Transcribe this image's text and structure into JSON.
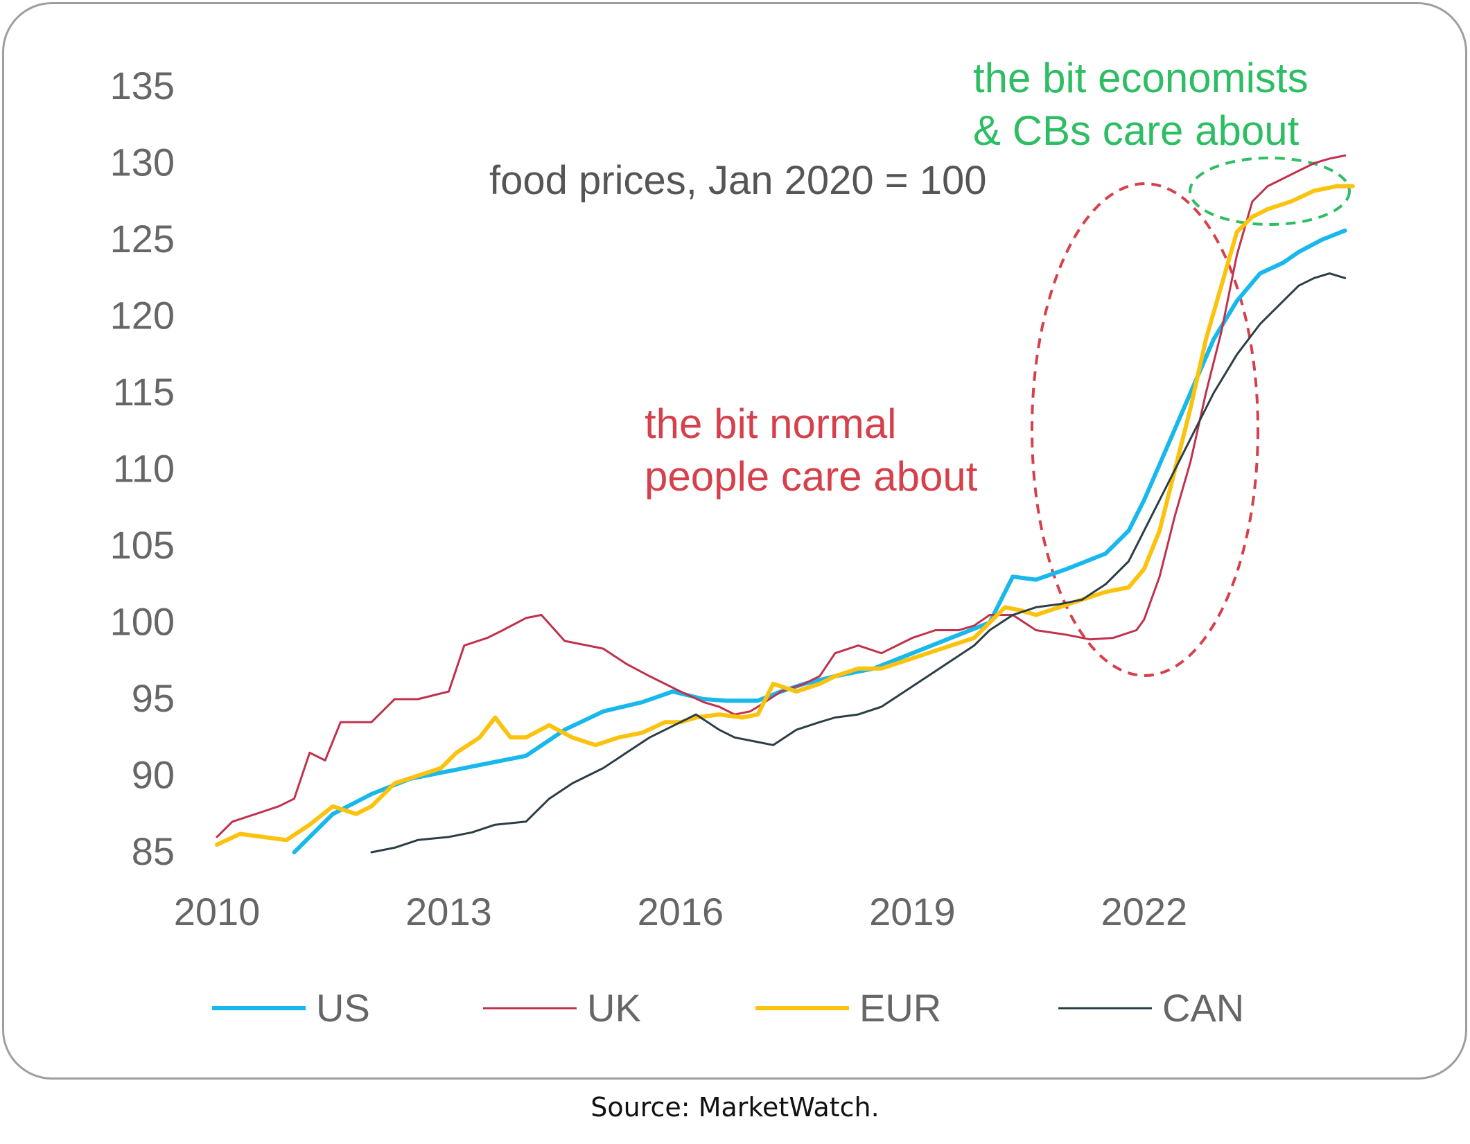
{
  "source_note": "Source: MarketWatch.",
  "chart_data": {
    "type": "line",
    "title": "food prices, Jan 2020 = 100",
    "xlabel": "",
    "ylabel": "",
    "xlim": [
      2010,
      2024.8
    ],
    "ylim": [
      85,
      135
    ],
    "x_ticks": [
      2010,
      2013,
      2016,
      2019,
      2022
    ],
    "y_ticks": [
      85,
      90,
      95,
      100,
      105,
      110,
      115,
      120,
      125,
      130,
      135
    ],
    "grid": false,
    "legend_position": "bottom",
    "annotations": [
      {
        "key": "econ",
        "lines": [
          "the bit economists",
          "& CBs care about"
        ],
        "color": "#2dbd63"
      },
      {
        "key": "normal",
        "lines": [
          "the bit normal",
          "people care about"
        ],
        "color": "#d6404b"
      }
    ],
    "series": [
      {
        "name": "US",
        "color": "#19b8ec",
        "width": 6,
        "points": [
          [
            2011.0,
            85
          ],
          [
            2011.5,
            87.5
          ],
          [
            2012.0,
            88.8
          ],
          [
            2012.5,
            89.8
          ],
          [
            2013.0,
            90.3
          ],
          [
            2013.5,
            90.8
          ],
          [
            2014.0,
            91.3
          ],
          [
            2014.5,
            93.0
          ],
          [
            2015.0,
            94.2
          ],
          [
            2015.5,
            94.8
          ],
          [
            2015.9,
            95.5
          ],
          [
            2016.3,
            95.0
          ],
          [
            2016.6,
            94.9
          ],
          [
            2017.0,
            94.9
          ],
          [
            2017.3,
            95.5
          ],
          [
            2017.6,
            96.0
          ],
          [
            2018.0,
            96.5
          ],
          [
            2018.5,
            97.0
          ],
          [
            2019.0,
            98.0
          ],
          [
            2019.5,
            99.0
          ],
          [
            2020.0,
            100.0
          ],
          [
            2020.3,
            103.0
          ],
          [
            2020.6,
            102.8
          ],
          [
            2021.0,
            103.5
          ],
          [
            2021.5,
            104.5
          ],
          [
            2021.8,
            106.0
          ],
          [
            2022.0,
            108.0
          ],
          [
            2022.3,
            111.5
          ],
          [
            2022.6,
            115.0
          ],
          [
            2022.9,
            118.5
          ],
          [
            2023.2,
            121.0
          ],
          [
            2023.5,
            122.8
          ],
          [
            2023.8,
            123.5
          ],
          [
            2024.0,
            124.2
          ],
          [
            2024.3,
            125.0
          ],
          [
            2024.6,
            125.6
          ]
        ]
      },
      {
        "name": "UK",
        "color": "#c0314d",
        "width": 3,
        "points": [
          [
            2010.0,
            86.0
          ],
          [
            2010.2,
            87.0
          ],
          [
            2010.5,
            87.5
          ],
          [
            2010.8,
            88.0
          ],
          [
            2011.0,
            88.5
          ],
          [
            2011.2,
            91.5
          ],
          [
            2011.4,
            91.0
          ],
          [
            2011.6,
            93.5
          ],
          [
            2012.0,
            93.5
          ],
          [
            2012.3,
            95.0
          ],
          [
            2012.6,
            95.0
          ],
          [
            2013.0,
            95.5
          ],
          [
            2013.2,
            98.5
          ],
          [
            2013.5,
            99.0
          ],
          [
            2013.7,
            99.5
          ],
          [
            2014.0,
            100.3
          ],
          [
            2014.2,
            100.5
          ],
          [
            2014.5,
            98.8
          ],
          [
            2014.8,
            98.5
          ],
          [
            2015.0,
            98.3
          ],
          [
            2015.3,
            97.3
          ],
          [
            2015.6,
            96.5
          ],
          [
            2016.0,
            95.5
          ],
          [
            2016.3,
            94.8
          ],
          [
            2016.5,
            94.5
          ],
          [
            2016.7,
            94.0
          ],
          [
            2016.9,
            94.2
          ],
          [
            2017.0,
            94.5
          ],
          [
            2017.3,
            95.5
          ],
          [
            2017.6,
            96.0
          ],
          [
            2017.8,
            96.5
          ],
          [
            2018.0,
            98.0
          ],
          [
            2018.3,
            98.5
          ],
          [
            2018.6,
            98.0
          ],
          [
            2018.8,
            98.5
          ],
          [
            2019.0,
            99.0
          ],
          [
            2019.3,
            99.5
          ],
          [
            2019.6,
            99.5
          ],
          [
            2019.8,
            99.8
          ],
          [
            2020.0,
            100.5
          ],
          [
            2020.3,
            100.5
          ],
          [
            2020.6,
            99.5
          ],
          [
            2021.0,
            99.2
          ],
          [
            2021.3,
            98.9
          ],
          [
            2021.6,
            99.0
          ],
          [
            2021.9,
            99.5
          ],
          [
            2022.0,
            100.2
          ],
          [
            2022.2,
            103.0
          ],
          [
            2022.4,
            107.0
          ],
          [
            2022.6,
            110.5
          ],
          [
            2022.8,
            115.0
          ],
          [
            2023.0,
            119.0
          ],
          [
            2023.2,
            124.0
          ],
          [
            2023.4,
            127.5
          ],
          [
            2023.6,
            128.5
          ],
          [
            2023.8,
            129.0
          ],
          [
            2024.0,
            129.5
          ],
          [
            2024.2,
            130.0
          ],
          [
            2024.4,
            130.3
          ],
          [
            2024.6,
            130.5
          ]
        ]
      },
      {
        "name": "EUR",
        "color": "#fbc20e",
        "width": 6,
        "points": [
          [
            2010.0,
            85.5
          ],
          [
            2010.3,
            86.2
          ],
          [
            2010.6,
            86.0
          ],
          [
            2010.9,
            85.8
          ],
          [
            2011.2,
            86.8
          ],
          [
            2011.5,
            88.0
          ],
          [
            2011.8,
            87.5
          ],
          [
            2012.0,
            88.0
          ],
          [
            2012.3,
            89.5
          ],
          [
            2012.6,
            90.0
          ],
          [
            2012.9,
            90.5
          ],
          [
            2013.1,
            91.5
          ],
          [
            2013.4,
            92.5
          ],
          [
            2013.6,
            93.8
          ],
          [
            2013.8,
            92.5
          ],
          [
            2014.0,
            92.5
          ],
          [
            2014.3,
            93.3
          ],
          [
            2014.6,
            92.5
          ],
          [
            2014.9,
            92.0
          ],
          [
            2015.2,
            92.5
          ],
          [
            2015.5,
            92.8
          ],
          [
            2015.8,
            93.5
          ],
          [
            2016.0,
            93.5
          ],
          [
            2016.2,
            93.8
          ],
          [
            2016.5,
            94.0
          ],
          [
            2016.8,
            93.8
          ],
          [
            2017.0,
            94.0
          ],
          [
            2017.2,
            96.0
          ],
          [
            2017.5,
            95.5
          ],
          [
            2017.8,
            96.0
          ],
          [
            2018.0,
            96.5
          ],
          [
            2018.3,
            97.0
          ],
          [
            2018.6,
            97.0
          ],
          [
            2018.9,
            97.5
          ],
          [
            2019.2,
            98.0
          ],
          [
            2019.5,
            98.5
          ],
          [
            2019.8,
            99.0
          ],
          [
            2020.0,
            100.0
          ],
          [
            2020.2,
            101.0
          ],
          [
            2020.4,
            100.8
          ],
          [
            2020.6,
            100.5
          ],
          [
            2020.9,
            101.0
          ],
          [
            2021.2,
            101.5
          ],
          [
            2021.5,
            102.0
          ],
          [
            2021.8,
            102.3
          ],
          [
            2022.0,
            103.5
          ],
          [
            2022.2,
            106.0
          ],
          [
            2022.4,
            110.0
          ],
          [
            2022.6,
            114.0
          ],
          [
            2022.8,
            118.5
          ],
          [
            2023.0,
            122.0
          ],
          [
            2023.2,
            125.5
          ],
          [
            2023.4,
            126.5
          ],
          [
            2023.6,
            127.0
          ],
          [
            2023.9,
            127.5
          ],
          [
            2024.2,
            128.2
          ],
          [
            2024.5,
            128.5
          ],
          [
            2024.7,
            128.5
          ]
        ]
      },
      {
        "name": "CAN",
        "color": "#2b3e47",
        "width": 3,
        "points": [
          [
            2012.0,
            85.0
          ],
          [
            2012.3,
            85.3
          ],
          [
            2012.6,
            85.8
          ],
          [
            2013.0,
            86.0
          ],
          [
            2013.3,
            86.3
          ],
          [
            2013.6,
            86.8
          ],
          [
            2014.0,
            87.0
          ],
          [
            2014.3,
            88.5
          ],
          [
            2014.6,
            89.5
          ],
          [
            2015.0,
            90.5
          ],
          [
            2015.3,
            91.5
          ],
          [
            2015.6,
            92.5
          ],
          [
            2016.0,
            93.5
          ],
          [
            2016.2,
            94.0
          ],
          [
            2016.5,
            93.0
          ],
          [
            2016.7,
            92.5
          ],
          [
            2017.0,
            92.2
          ],
          [
            2017.2,
            92.0
          ],
          [
            2017.5,
            93.0
          ],
          [
            2017.8,
            93.5
          ],
          [
            2018.0,
            93.8
          ],
          [
            2018.3,
            94.0
          ],
          [
            2018.6,
            94.5
          ],
          [
            2018.9,
            95.5
          ],
          [
            2019.2,
            96.5
          ],
          [
            2019.5,
            97.5
          ],
          [
            2019.8,
            98.5
          ],
          [
            2020.0,
            99.5
          ],
          [
            2020.3,
            100.5
          ],
          [
            2020.6,
            101.0
          ],
          [
            2020.9,
            101.2
          ],
          [
            2021.2,
            101.5
          ],
          [
            2021.5,
            102.5
          ],
          [
            2021.8,
            104.0
          ],
          [
            2022.0,
            106.0
          ],
          [
            2022.3,
            109.0
          ],
          [
            2022.6,
            112.0
          ],
          [
            2022.9,
            115.0
          ],
          [
            2023.2,
            117.5
          ],
          [
            2023.5,
            119.5
          ],
          [
            2023.8,
            121.0
          ],
          [
            2024.0,
            122.0
          ],
          [
            2024.2,
            122.5
          ],
          [
            2024.4,
            122.8
          ],
          [
            2024.6,
            122.5
          ]
        ]
      }
    ]
  }
}
